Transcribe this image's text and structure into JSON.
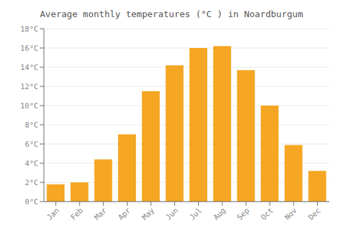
{
  "chart_data": {
    "type": "bar",
    "title": "Average monthly temperatures (°C ) in Noardburgum",
    "categories": [
      "Jan",
      "Feb",
      "Mar",
      "Apr",
      "May",
      "Jun",
      "Jul",
      "Aug",
      "Sep",
      "Oct",
      "Nov",
      "Dec"
    ],
    "values": [
      1.8,
      2.0,
      4.4,
      7.0,
      11.5,
      14.2,
      16.0,
      16.2,
      13.7,
      10.0,
      5.9,
      3.2
    ],
    "color": "#F5A623",
    "ylim": [
      0,
      18
    ],
    "yticks": [
      {
        "value": 0,
        "label": "0°C"
      },
      {
        "value": 2,
        "label": "2°C"
      },
      {
        "value": 4,
        "label": "4°C"
      },
      {
        "value": 6,
        "label": "6°C"
      },
      {
        "value": 8,
        "label": "8°C"
      },
      {
        "value": 10,
        "label": "10°C"
      },
      {
        "value": 12,
        "label": "12°C"
      },
      {
        "value": 14,
        "label": "14°C"
      },
      {
        "value": 16,
        "label": "16°C"
      },
      {
        "value": 18,
        "label": "18°C"
      }
    ],
    "grid": true
  }
}
